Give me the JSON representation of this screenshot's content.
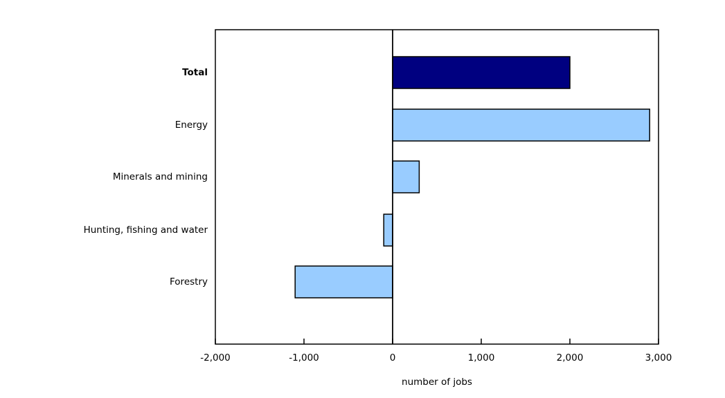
{
  "chart_data": {
    "type": "bar",
    "orientation": "horizontal",
    "title": "",
    "xlabel": "number of jobs",
    "ylabel": "",
    "categories": [
      "Total",
      "Energy",
      "Minerals and mining",
      "Hunting, fishing and water",
      "Forestry"
    ],
    "values": [
      2000,
      2900,
      300,
      -100,
      -1100
    ],
    "bar_colors": [
      "#000080",
      "#99ccff",
      "#99ccff",
      "#99ccff",
      "#99ccff"
    ],
    "emphasized_categories": [
      true,
      false,
      false,
      false,
      false
    ],
    "xlim": [
      -2000,
      3000
    ],
    "xticks": [
      -2000,
      -1000,
      0,
      1000,
      2000,
      3000
    ],
    "xtick_labels": [
      "-2,000",
      "-1,000",
      "0",
      "1,000",
      "2,000",
      "3,000"
    ],
    "grid": "off",
    "legend": "none",
    "colors": {
      "background": "#ffffff",
      "axis": "#000000",
      "bar_outline": "#000000",
      "total_bar": "#000080",
      "category_bar": "#99ccff"
    }
  }
}
